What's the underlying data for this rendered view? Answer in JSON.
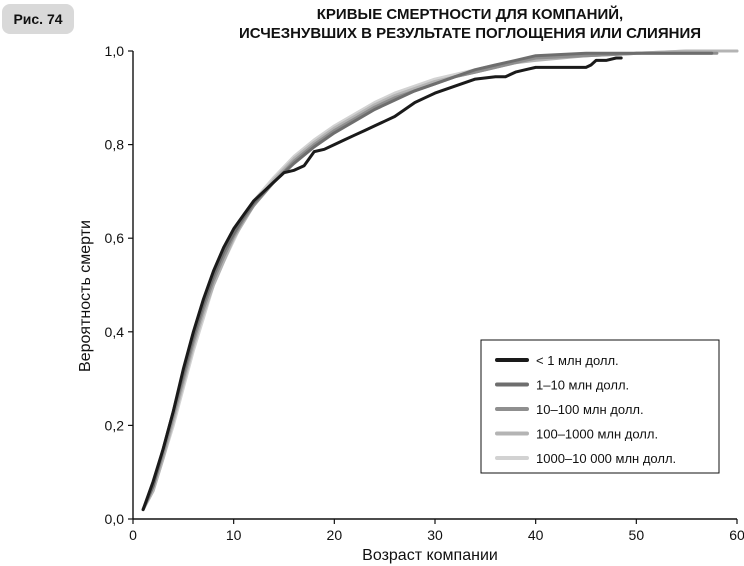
{
  "figure_label": "Рис. 74",
  "chart_data": {
    "type": "line",
    "title": [
      "КРИВЫЕ СМЕРТНОСТИ ДЛЯ КОМПАНИЙ,",
      "ИСЧЕЗНУВШИХ В РЕЗУЛЬТАТЕ ПОГЛОЩЕНИЯ ИЛИ СЛИЯНИЯ"
    ],
    "xlabel": "Возраст компании",
    "ylabel": "Вероятность смерти",
    "xlim": [
      0,
      60
    ],
    "ylim": [
      0,
      1
    ],
    "xticks": [
      0,
      10,
      20,
      30,
      40,
      50,
      60
    ],
    "yticks": [
      0,
      0.2,
      0.4,
      0.6,
      0.8,
      1.0
    ],
    "ytick_labels": [
      "0,0",
      "0,2",
      "0,4",
      "0,6",
      "0,8",
      "1,0"
    ],
    "legend_position": "bottom-right",
    "series": [
      {
        "name": "< 1 млн долл.",
        "color": "#1a1a1a",
        "x": [
          1,
          2,
          3,
          4,
          5,
          6,
          7,
          8,
          9,
          10,
          11,
          12,
          13,
          14,
          15,
          16,
          17,
          17.5,
          18,
          19,
          20,
          21,
          22,
          23,
          24,
          25,
          26,
          27,
          28,
          29,
          30,
          32,
          34,
          36,
          37,
          38,
          39,
          40,
          42,
          44,
          45,
          45.5,
          46,
          47,
          48,
          48.5
        ],
        "y": [
          0.02,
          0.08,
          0.15,
          0.23,
          0.32,
          0.4,
          0.47,
          0.53,
          0.58,
          0.62,
          0.65,
          0.68,
          0.7,
          0.72,
          0.74,
          0.745,
          0.755,
          0.77,
          0.785,
          0.79,
          0.8,
          0.81,
          0.82,
          0.83,
          0.84,
          0.85,
          0.86,
          0.875,
          0.89,
          0.9,
          0.91,
          0.925,
          0.94,
          0.945,
          0.945,
          0.955,
          0.96,
          0.965,
          0.965,
          0.965,
          0.965,
          0.97,
          0.98,
          0.98,
          0.985,
          0.985
        ]
      },
      {
        "name": "1–10 млн долл.",
        "color": "#6e6e6e",
        "x": [
          1,
          2,
          3,
          4,
          5,
          6,
          7,
          8,
          9,
          10,
          11,
          12,
          14,
          16,
          18,
          20,
          22,
          24,
          26,
          28,
          30,
          32,
          34,
          36,
          38,
          40,
          45,
          50,
          55,
          57.5
        ],
        "y": [
          0.02,
          0.07,
          0.15,
          0.23,
          0.31,
          0.39,
          0.46,
          0.52,
          0.57,
          0.61,
          0.645,
          0.675,
          0.72,
          0.76,
          0.795,
          0.825,
          0.85,
          0.875,
          0.895,
          0.915,
          0.93,
          0.945,
          0.96,
          0.97,
          0.98,
          0.99,
          0.995,
          0.995,
          0.995,
          0.995
        ]
      },
      {
        "name": "10–100 млн долл.",
        "color": "#8f8f8f",
        "x": [
          1,
          2,
          3,
          4,
          5,
          6,
          7,
          8,
          9,
          10,
          11,
          12,
          14,
          16,
          18,
          20,
          22,
          24,
          26,
          28,
          30,
          32,
          34,
          36,
          38,
          40,
          45,
          50,
          55,
          58
        ],
        "y": [
          0.02,
          0.07,
          0.14,
          0.22,
          0.3,
          0.38,
          0.45,
          0.51,
          0.56,
          0.605,
          0.64,
          0.67,
          0.72,
          0.765,
          0.8,
          0.83,
          0.855,
          0.88,
          0.9,
          0.915,
          0.93,
          0.945,
          0.955,
          0.965,
          0.975,
          0.985,
          0.99,
          0.995,
          0.995,
          0.995
        ]
      },
      {
        "name": "100–1000 млн долл.",
        "color": "#b4b4b4",
        "x": [
          1,
          2,
          3,
          4,
          5,
          6,
          7,
          8,
          9,
          10,
          11,
          12,
          14,
          16,
          18,
          20,
          22,
          24,
          26,
          28,
          30,
          32,
          34,
          36,
          38,
          40,
          45,
          50,
          55,
          60
        ],
        "y": [
          0.02,
          0.06,
          0.13,
          0.21,
          0.29,
          0.37,
          0.44,
          0.5,
          0.55,
          0.6,
          0.635,
          0.67,
          0.725,
          0.77,
          0.805,
          0.835,
          0.86,
          0.885,
          0.905,
          0.92,
          0.935,
          0.945,
          0.955,
          0.965,
          0.975,
          0.98,
          0.99,
          0.995,
          1.0,
          1.0
        ]
      },
      {
        "name": "1000–10 000 млн долл.",
        "color": "#d2d2d2",
        "x": [
          1,
          2,
          3,
          4,
          5,
          6,
          7,
          8,
          9,
          10,
          11,
          12,
          14,
          16,
          18,
          20,
          22,
          24,
          26,
          28,
          30,
          32,
          34,
          36,
          38,
          40,
          45,
          50,
          55,
          60
        ],
        "y": [
          0.02,
          0.06,
          0.13,
          0.2,
          0.28,
          0.36,
          0.43,
          0.5,
          0.55,
          0.595,
          0.64,
          0.68,
          0.73,
          0.775,
          0.81,
          0.84,
          0.865,
          0.89,
          0.91,
          0.925,
          0.94,
          0.95,
          0.96,
          0.97,
          0.975,
          0.985,
          0.99,
          0.995,
          1.0,
          1.0
        ]
      }
    ]
  }
}
